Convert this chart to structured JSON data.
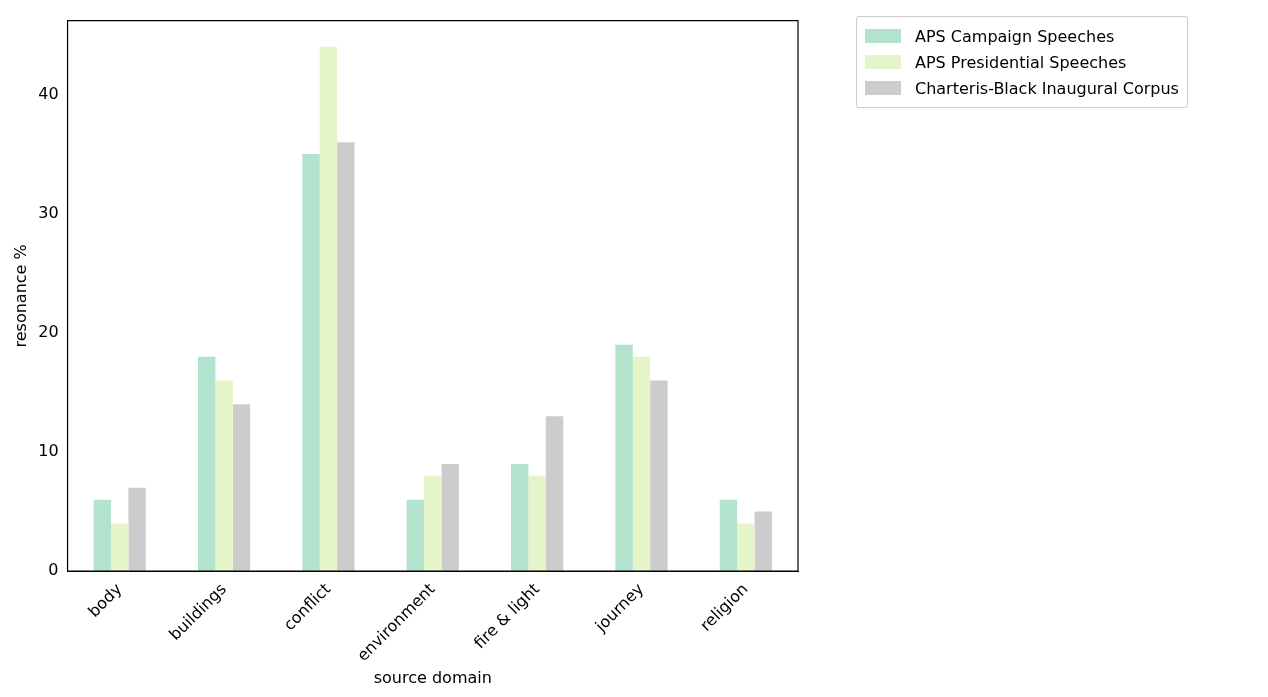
{
  "chart_data": {
    "type": "bar",
    "xlabel": "source domain",
    "ylabel": "resonance %",
    "categories": [
      "body",
      "buildings",
      "conflict",
      "environment",
      "fire & light",
      "journey",
      "religion"
    ],
    "series": [
      {
        "name": "APS Campaign Speeches",
        "color": "#b3e2cd",
        "values": [
          6,
          18,
          35,
          6,
          9,
          19,
          6
        ]
      },
      {
        "name": "APS Presidential Speeches",
        "color": "#e6f5c9",
        "values": [
          4,
          16,
          44,
          8,
          8,
          18,
          4
        ]
      },
      {
        "name": "Charteris-Black Inaugural Corpus",
        "color": "#cccccc",
        "values": [
          7,
          14,
          36,
          9,
          13,
          16,
          5
        ]
      }
    ],
    "ylim": [
      0,
      46.2
    ],
    "yticks": [
      0,
      10,
      20,
      30,
      40
    ],
    "grid": false,
    "legend": "top right"
  }
}
